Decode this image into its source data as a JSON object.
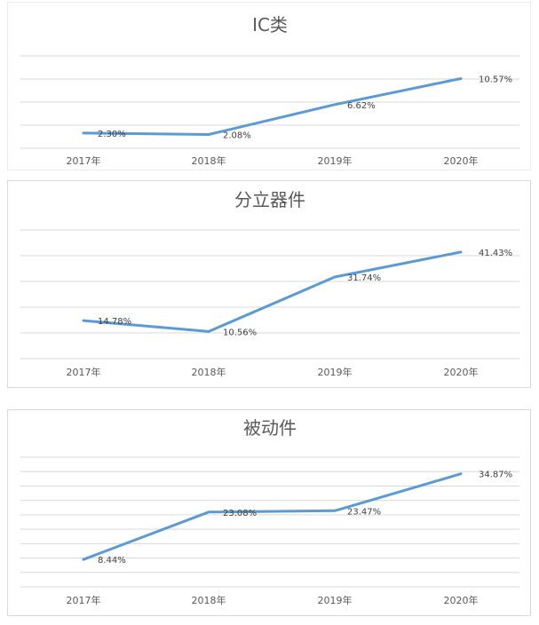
{
  "colors": {
    "series": "#5b9bd5",
    "grid": "#d9d9d9",
    "text": "#595959"
  },
  "chart_data": [
    {
      "type": "line",
      "title": "IC类",
      "categories": [
        "2017年",
        "2018年",
        "2019年",
        "2020年"
      ],
      "values": [
        2.3,
        2.08,
        6.62,
        10.57
      ],
      "data_labels": [
        "2.30%",
        "2.08%",
        "6.62%",
        "10.57%"
      ],
      "ylim": [
        0,
        14
      ],
      "grid": true,
      "legend": "none"
    },
    {
      "type": "line",
      "title": "分立器件",
      "categories": [
        "2017年",
        "2018年",
        "2019年",
        "2020年"
      ],
      "values": [
        14.78,
        10.56,
        31.74,
        41.43
      ],
      "data_labels": [
        "14.78%",
        "10.56%",
        "31.74%",
        "41.43%"
      ],
      "ylim": [
        0,
        50
      ],
      "grid": true,
      "legend": "none"
    },
    {
      "type": "line",
      "title": "被动件",
      "categories": [
        "2017年",
        "2018年",
        "2019年",
        "2020年"
      ],
      "values": [
        8.44,
        23.08,
        23.47,
        34.87
      ],
      "data_labels": [
        "8.44%",
        "23.08%",
        "23.47%",
        "34.87%"
      ],
      "ylim": [
        0,
        40
      ],
      "grid": true,
      "legend": "none"
    }
  ]
}
